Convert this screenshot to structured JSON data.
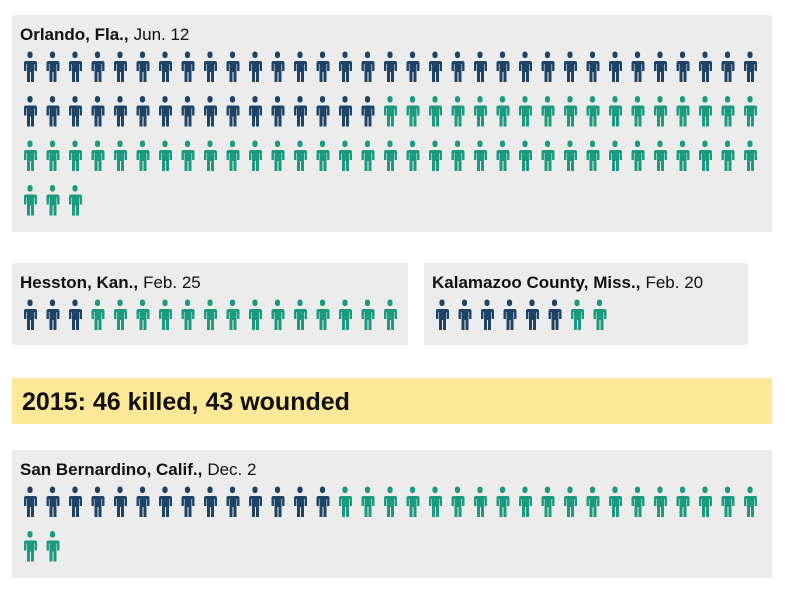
{
  "killed_color": "#1d4466",
  "wounded_color": "#1a9a7e",
  "events": [
    {
      "location": "Orlando, Fla.,",
      "date": "Jun. 12",
      "killed": 49,
      "wounded": 53
    },
    {
      "location": "Hesston, Kan.,",
      "date": "Feb. 25",
      "killed": 3,
      "wounded": 14
    },
    {
      "location": "Kalamazoo County, Miss.,",
      "date": "Feb. 20",
      "killed": 6,
      "wounded": 2
    },
    {
      "location": "San Bernardino, Calif.,",
      "date": "Dec. 2",
      "killed": 14,
      "wounded": 21
    }
  ],
  "banner": "2015: 46 killed, 43 wounded"
}
